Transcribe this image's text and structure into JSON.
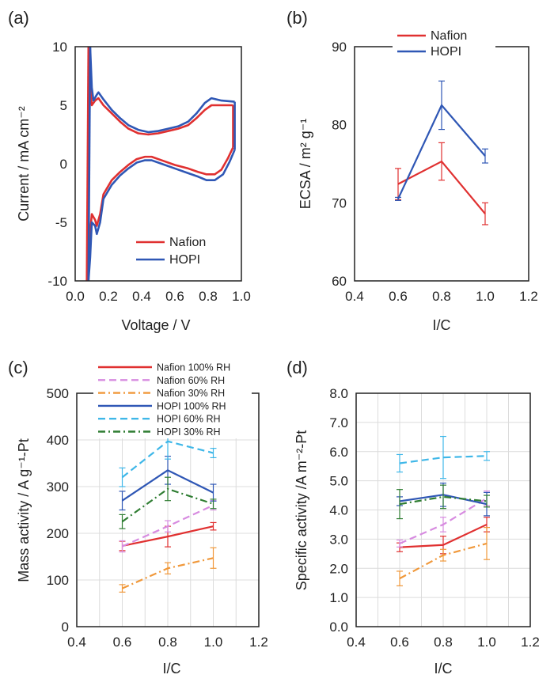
{
  "colors": {
    "nafion": "#e03030",
    "hopi": "#2f57b5",
    "nafion_60": "#d78be0",
    "nafion_30": "#f0983a",
    "hopi_60": "#3fb7e8",
    "hopi_30": "#2f7d32",
    "grid": "#dcdcdc",
    "frame": "#222222"
  },
  "chart_data": [
    {
      "panel": "(a)",
      "type": "line",
      "xlabel": "Voltage / V",
      "ylabel": "Current / mA cm⁻²",
      "xlim": [
        0,
        1.0
      ],
      "ylim": [
        -10,
        10
      ],
      "xticks": [
        "0.0",
        "0.2",
        "0.4",
        "0.6",
        "0.8",
        "1.0"
      ],
      "yticks": [
        "10",
        "5",
        "0",
        "-5",
        "-10"
      ],
      "grid": false,
      "legend_position": "bottom-right",
      "series": [
        {
          "name": "Nafion",
          "color_key": "nafion",
          "anodic": [
            [
              0.08,
              10
            ],
            [
              0.09,
              6.5
            ],
            [
              0.1,
              5.0
            ],
            [
              0.12,
              5.4
            ],
            [
              0.14,
              5.6
            ],
            [
              0.17,
              5.0
            ],
            [
              0.22,
              4.3
            ],
            [
              0.27,
              3.6
            ],
            [
              0.32,
              3.0
            ],
            [
              0.38,
              2.6
            ],
            [
              0.44,
              2.5
            ],
            [
              0.5,
              2.6
            ],
            [
              0.56,
              2.8
            ],
            [
              0.62,
              3.0
            ],
            [
              0.68,
              3.3
            ],
            [
              0.73,
              3.9
            ],
            [
              0.78,
              4.6
            ],
            [
              0.82,
              5.0
            ],
            [
              0.88,
              5.0
            ],
            [
              0.95,
              5.0
            ]
          ],
          "cathodic": [
            [
              0.95,
              1.4
            ],
            [
              0.92,
              0.5
            ],
            [
              0.88,
              -0.5
            ],
            [
              0.84,
              -0.9
            ],
            [
              0.79,
              -0.9
            ],
            [
              0.74,
              -0.7
            ],
            [
              0.68,
              -0.4
            ],
            [
              0.6,
              -0.1
            ],
            [
              0.52,
              0.3
            ],
            [
              0.46,
              0.6
            ],
            [
              0.42,
              0.6
            ],
            [
              0.37,
              0.4
            ],
            [
              0.32,
              -0.1
            ],
            [
              0.27,
              -0.7
            ],
            [
              0.22,
              -1.4
            ],
            [
              0.17,
              -2.6
            ],
            [
              0.15,
              -4.3
            ],
            [
              0.13,
              -5.3
            ],
            [
              0.12,
              -4.8
            ],
            [
              0.1,
              -4.3
            ],
            [
              0.08,
              -7.5
            ],
            [
              0.07,
              -10
            ]
          ]
        },
        {
          "name": "HOPI",
          "color_key": "hopi",
          "anodic": [
            [
              0.09,
              10
            ],
            [
              0.1,
              6.5
            ],
            [
              0.11,
              5.4
            ],
            [
              0.13,
              5.9
            ],
            [
              0.14,
              6.1
            ],
            [
              0.17,
              5.5
            ],
            [
              0.22,
              4.6
            ],
            [
              0.27,
              3.9
            ],
            [
              0.32,
              3.3
            ],
            [
              0.38,
              2.9
            ],
            [
              0.44,
              2.7
            ],
            [
              0.5,
              2.8
            ],
            [
              0.56,
              3.0
            ],
            [
              0.62,
              3.2
            ],
            [
              0.68,
              3.6
            ],
            [
              0.73,
              4.3
            ],
            [
              0.78,
              5.2
            ],
            [
              0.82,
              5.6
            ],
            [
              0.88,
              5.4
            ],
            [
              0.96,
              5.3
            ]
          ],
          "cathodic": [
            [
              0.96,
              1.2
            ],
            [
              0.93,
              0.2
            ],
            [
              0.89,
              -0.9
            ],
            [
              0.84,
              -1.4
            ],
            [
              0.79,
              -1.4
            ],
            [
              0.74,
              -1.1
            ],
            [
              0.68,
              -0.8
            ],
            [
              0.6,
              -0.4
            ],
            [
              0.52,
              0.0
            ],
            [
              0.46,
              0.3
            ],
            [
              0.42,
              0.3
            ],
            [
              0.37,
              0.1
            ],
            [
              0.32,
              -0.4
            ],
            [
              0.27,
              -1.0
            ],
            [
              0.22,
              -1.8
            ],
            [
              0.17,
              -3.0
            ],
            [
              0.15,
              -5.0
            ],
            [
              0.13,
              -6.0
            ],
            [
              0.12,
              -5.3
            ],
            [
              0.1,
              -5.0
            ],
            [
              0.09,
              -8.0
            ],
            [
              0.08,
              -10
            ]
          ]
        }
      ]
    },
    {
      "panel": "(b)",
      "type": "line",
      "xlabel": "I/C",
      "ylabel": "ECSA / m² g⁻¹",
      "xlim": [
        0.4,
        1.2
      ],
      "ylim": [
        60,
        90
      ],
      "xticks": [
        "0.4",
        "0.6",
        "0.8",
        "1.0",
        "1.2"
      ],
      "yticks": [
        "90",
        "80",
        "70",
        "60"
      ],
      "grid": false,
      "legend_position": "top",
      "x": [
        0.6,
        0.8,
        1.0
      ],
      "series": [
        {
          "name": "Nafion",
          "color_key": "nafion",
          "values": [
            72.4,
            75.3,
            68.6
          ],
          "errors": [
            2.0,
            2.4,
            1.4
          ]
        },
        {
          "name": "HOPI",
          "color_key": "hopi",
          "values": [
            70.5,
            82.5,
            76.0
          ],
          "errors": [
            0.2,
            3.1,
            0.9
          ]
        }
      ]
    },
    {
      "panel": "(c)",
      "type": "line",
      "xlabel": "I/C",
      "ylabel": "Mass activity / A g⁻¹-Pt",
      "xlim": [
        0.4,
        1.2
      ],
      "ylim": [
        0,
        500
      ],
      "xticks": [
        "0.4",
        "0.6",
        "0.8",
        "1.0",
        "1.2"
      ],
      "yticks": [
        "0",
        "100",
        "200",
        "300",
        "400",
        "500"
      ],
      "grid": true,
      "legend_position": "top",
      "x": [
        0.6,
        0.8,
        1.0
      ],
      "series": [
        {
          "name": "Nafion 100% RH",
          "color_key": "nafion",
          "dash": "solid",
          "values": [
            173,
            193,
            215
          ],
          "errors": [
            10,
            22,
            8
          ]
        },
        {
          "name": "Nafion 60% RH",
          "color_key": "nafion_60",
          "dash": "dash",
          "values": [
            172,
            215,
            260
          ],
          "errors": [
            12,
            12,
            10
          ]
        },
        {
          "name": "Nafion 30% RH",
          "color_key": "nafion_30",
          "dash": "dashdot",
          "values": [
            82,
            125,
            147
          ],
          "errors": [
            8,
            12,
            22
          ]
        },
        {
          "name": "HOPI 100% RH",
          "color_key": "hopi",
          "dash": "solid",
          "values": [
            270,
            335,
            287
          ],
          "errors": [
            20,
            30,
            18
          ]
        },
        {
          "name": "HOPI 60% RH",
          "color_key": "hopi_60",
          "dash": "dash",
          "values": [
            320,
            397,
            372
          ],
          "errors": [
            20,
            38,
            10
          ]
        },
        {
          "name": "HOPI 30% RH",
          "color_key": "hopi_30",
          "dash": "dashdot",
          "values": [
            225,
            295,
            263
          ],
          "errors": [
            15,
            25,
            10
          ]
        }
      ]
    },
    {
      "panel": "(d)",
      "type": "line",
      "xlabel": "I/C",
      "ylabel": "Specific activity /A m⁻²-Pt",
      "xlim": [
        0.4,
        1.2
      ],
      "ylim": [
        0,
        8
      ],
      "xticks": [
        "0.4",
        "0.6",
        "0.8",
        "1.0",
        "1.2"
      ],
      "yticks": [
        "0.0",
        "1.0",
        "2.0",
        "3.0",
        "4.0",
        "5.0",
        "6.0",
        "7.0",
        "8.0"
      ],
      "grid": true,
      "legend_position": "none",
      "x": [
        0.6,
        0.8,
        1.0
      ],
      "series": [
        {
          "name": "Nafion 100% RH",
          "color_key": "nafion",
          "dash": "solid",
          "values": [
            2.72,
            2.8,
            3.5
          ],
          "errors": [
            0.15,
            0.3,
            0.25
          ]
        },
        {
          "name": "Nafion 60% RH",
          "color_key": "nafion_60",
          "dash": "dash",
          "values": [
            2.85,
            3.5,
            4.4
          ],
          "errors": [
            0.12,
            0.25,
            0.25
          ]
        },
        {
          "name": "Nafion 30% RH",
          "color_key": "nafion_30",
          "dash": "dashdot",
          "values": [
            1.65,
            2.45,
            2.85
          ],
          "errors": [
            0.25,
            0.2,
            0.55
          ]
        },
        {
          "name": "HOPI 100% RH",
          "color_key": "hopi",
          "dash": "solid",
          "values": [
            4.3,
            4.52,
            4.2
          ],
          "errors": [
            0.15,
            0.4,
            0.4
          ]
        },
        {
          "name": "HOPI 60% RH",
          "color_key": "hopi_60",
          "dash": "dash",
          "values": [
            5.6,
            5.8,
            5.85
          ],
          "errors": [
            0.3,
            0.72,
            0.15
          ]
        },
        {
          "name": "HOPI 30% RH",
          "color_key": "hopi_30",
          "dash": "dashdot",
          "values": [
            4.2,
            4.45,
            4.3
          ],
          "errors": [
            0.5,
            0.4,
            0.2
          ]
        }
      ]
    }
  ]
}
